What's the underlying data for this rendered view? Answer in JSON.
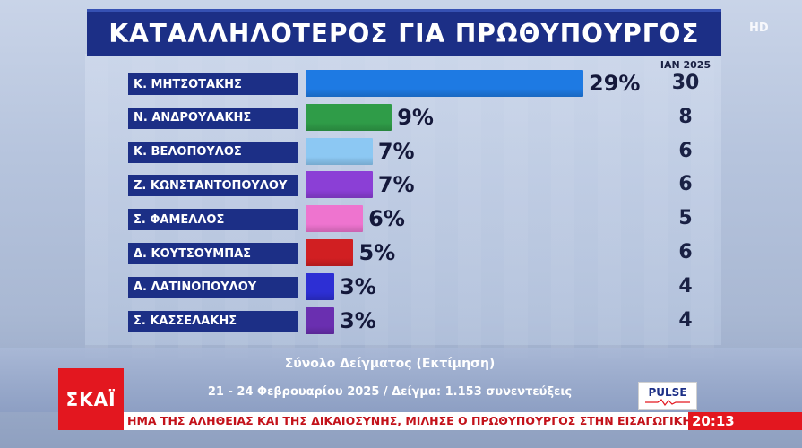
{
  "title": "ΚΑΤΑΛΛΗΛΟΤΕΡΟΣ ΓΙΑ ΠΡΩΘΥΠΟΥΡΓΟΣ",
  "hd_mark": "HD",
  "chart_data": {
    "type": "bar",
    "title": "ΚΑΤΑΛΛΗΛΟΤΕΡΟΣ ΓΙΑ ΠΡΩΘΥΠΟΥΡΓΟΣ",
    "orientation": "horizontal",
    "categories": [
      "Κ. ΜΗΤΣΟΤΑΚΗΣ",
      "Ν. ΑΝΔΡΟΥΛΑΚΗΣ",
      "Κ. ΒΕΛΟΠΟΥΛΟΣ",
      "Ζ. ΚΩΝΣΤΑΝΤΟΠΟΥΛΟΥ",
      "Σ. ΦΑΜΕΛΛΟΣ",
      "Δ. ΚΟΥΤΣΟΥΜΠΑΣ",
      "Α. ΛΑΤΙΝΟΠΟΥΛΟΥ",
      "Σ. ΚΑΣΣΕΛΑΚΗΣ"
    ],
    "values": [
      29,
      9,
      7,
      7,
      6,
      5,
      3,
      3
    ],
    "value_labels": [
      "29%",
      "9%",
      "7%",
      "7%",
      "6%",
      "5%",
      "3%",
      "3%"
    ],
    "colors": [
      "#1e7ae3",
      "#2f9c48",
      "#8cc8f3",
      "#8b3fd6",
      "#ee74cf",
      "#d11f22",
      "#2d2fd4",
      "#6a2fb0"
    ],
    "comparison": {
      "label": "ΙΑΝ 2025",
      "values": [
        "30",
        "8",
        "6",
        "6",
        "5",
        "6",
        "4",
        "4"
      ]
    },
    "xlim": [
      0,
      29
    ]
  },
  "footer": {
    "sample_title": "Σύνολο Δείγματος (Εκτίμηση)",
    "sample_detail": "21 - 24 Φεβρουαρίου 2025 / Δείγμα: 1.153 συνεντεύξεις",
    "pollster_logo": "PULSE",
    "channel_logo": "ΣΚΑΪ",
    "ticker": "ΗΜΑ ΤΗΣ ΑΛΗΘΕΙΑΣ ΚΑΙ ΤΗΣ ΔΙΚΑΙΟΣΥΝΗΣ, ΜΙΛΗΣΕ Ο ΠΡΩΘΥΠΟΥΡΓΟΣ ΣΤΗΝ ΕΙΣΑΓΩΓΙΚΗ ΤΟΥ",
    "clock": "20:13"
  }
}
